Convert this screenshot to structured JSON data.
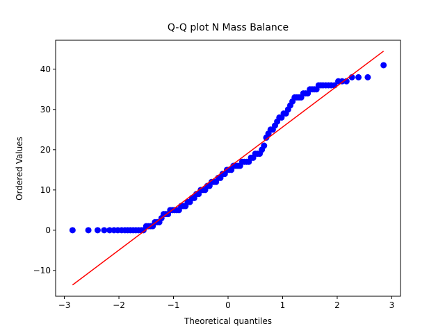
{
  "chart_data": {
    "type": "scatter",
    "title": "Q-Q plot N Mass Balance",
    "x_label": "Theoretical quantiles",
    "y_label": "Ordered Values",
    "xlim": [
      -3.16,
      3.16
    ],
    "ylim": [
      -16.4,
      47.2
    ],
    "xticks": [
      {
        "value": -3,
        "label": "−3"
      },
      {
        "value": -2,
        "label": "−2"
      },
      {
        "value": -1,
        "label": "−1"
      },
      0,
      1,
      2,
      3
    ],
    "yticks": [
      {
        "value": -10,
        "label": "−10"
      },
      0,
      10,
      20,
      30,
      40
    ],
    "series": [
      {
        "type": "scatter",
        "color": "#0000ff",
        "x": [
          -2.85,
          -2.56,
          -2.39,
          -2.27,
          -2.17,
          -2.09,
          -2.02,
          -1.95,
          -1.89,
          -1.84,
          -1.79,
          -1.74,
          -1.69,
          -1.64,
          -1.59,
          -1.55,
          -1.5,
          -1.46,
          -1.42,
          -1.38,
          -1.34,
          -1.3,
          -1.26,
          -1.22,
          -1.18,
          -1.14,
          -1.1,
          -1.06,
          -1.02,
          -0.98,
          -0.94,
          -0.9,
          -0.86,
          -0.82,
          -0.78,
          -0.74,
          -0.7,
          -0.66,
          -0.62,
          -0.58,
          -0.54,
          -0.5,
          -0.46,
          -0.42,
          -0.38,
          -0.34,
          -0.3,
          -0.26,
          -0.22,
          -0.18,
          -0.14,
          -0.1,
          -0.06,
          -0.02,
          0.02,
          0.06,
          0.1,
          0.14,
          0.18,
          0.22,
          0.26,
          0.3,
          0.34,
          0.38,
          0.42,
          0.46,
          0.5,
          0.54,
          0.58,
          0.62,
          0.66,
          0.7,
          0.74,
          0.78,
          0.82,
          0.86,
          0.9,
          0.94,
          0.98,
          1.02,
          1.06,
          1.1,
          1.14,
          1.18,
          1.22,
          1.26,
          1.3,
          1.34,
          1.38,
          1.42,
          1.46,
          1.5,
          1.54,
          1.58,
          1.62,
          1.66,
          1.7,
          1.74,
          1.79,
          1.84,
          1.89,
          1.95,
          2.02,
          2.09,
          2.17,
          2.27,
          2.39,
          2.56,
          2.85
        ],
        "values": [
          0,
          0,
          0,
          0,
          0,
          0,
          0,
          0,
          0,
          0,
          0,
          0,
          0,
          0,
          0,
          0,
          1,
          1,
          1,
          1,
          2,
          2,
          2,
          3,
          4,
          4,
          4,
          5,
          5,
          5,
          5,
          5,
          6,
          6,
          6,
          7,
          7,
          8,
          8,
          9,
          9,
          10,
          10,
          10,
          11,
          11,
          12,
          12,
          12,
          13,
          13,
          14,
          14,
          15,
          15,
          15,
          16,
          16,
          16,
          16,
          17,
          17,
          17,
          17,
          18,
          18,
          19,
          19,
          19,
          20,
          21,
          23,
          24,
          25,
          25,
          26,
          27,
          28,
          28,
          29,
          29,
          30,
          31,
          32,
          33,
          33,
          33,
          33,
          34,
          34,
          34,
          35,
          35,
          35,
          35,
          36,
          36,
          36,
          36,
          36,
          36,
          36,
          37,
          37,
          37,
          38,
          38,
          38,
          41
        ]
      },
      {
        "type": "line",
        "color": "#ff0000",
        "x": [
          -2.85,
          2.85
        ],
        "values": [
          -13.6,
          44.5
        ]
      }
    ]
  }
}
